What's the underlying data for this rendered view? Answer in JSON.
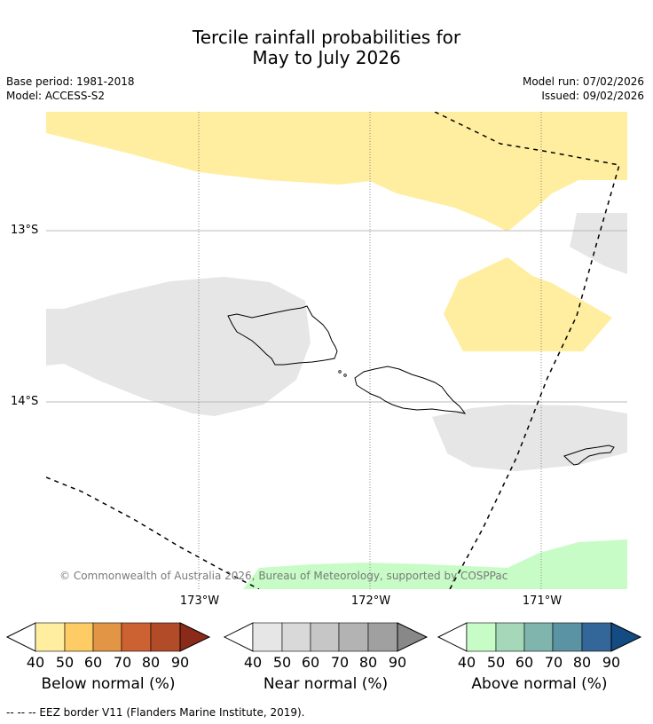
{
  "title": {
    "line1": "Tercile rainfall probabilities for",
    "line2": "May to July 2026"
  },
  "meta": {
    "base_period": "Base period: 1981-2018",
    "model": "Model: ACCESS-S2",
    "model_run": "Model run: 07/02/2026",
    "issued": "Issued: 09/02/2026"
  },
  "map": {
    "lat_labels": [
      "13°S",
      "14°S"
    ],
    "lon_labels": [
      "173°W",
      "172°W",
      "171°W"
    ],
    "copyright": "© Commonwealth of Australia 2026, Bureau of Meteorology, supported by COSPPac",
    "colors": {
      "below_normal_40_50": "#ffeda0",
      "near_normal_40_50": "#e6e6e6",
      "above_normal_40_50": "#c7fcc7"
    }
  },
  "colorbars": {
    "ticks": [
      "40",
      "50",
      "60",
      "70",
      "80",
      "90"
    ],
    "below": {
      "label": "Below normal (%)",
      "colors": [
        "#ffeda0",
        "#fecc65",
        "#e19545",
        "#cc6232",
        "#b24b27",
        "#8c2a1a"
      ]
    },
    "near": {
      "label": "Near normal (%)",
      "colors": [
        "#e6e6e6",
        "#d9d9d9",
        "#c6c6c6",
        "#b3b3b3",
        "#a0a0a0",
        "#888888"
      ]
    },
    "above": {
      "label": "Above normal (%)",
      "colors": [
        "#c7fcc7",
        "#a4d8b8",
        "#7fb5ad",
        "#5a93a3",
        "#336699",
        "#134b82"
      ]
    }
  },
  "footer": {
    "legend_line": "--  --  -- EEZ border V11 (Flanders Marine Institute, 2019)."
  }
}
